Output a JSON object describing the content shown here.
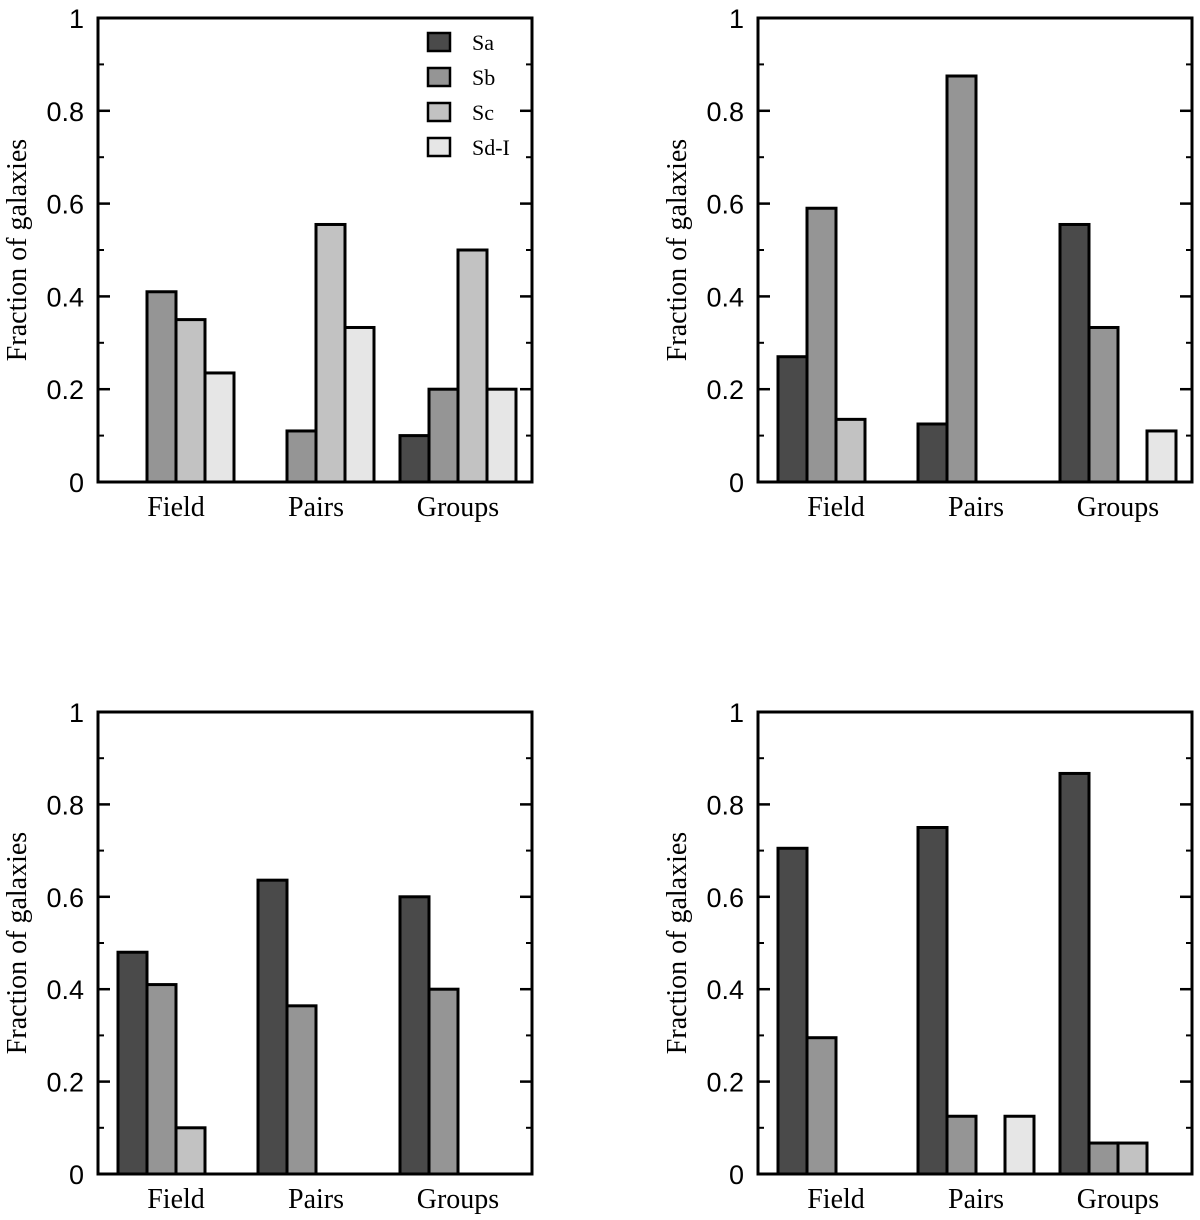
{
  "series_colors": {
    "Sa": "#4a4a4a",
    "Sb": "#959595",
    "Sc": "#c2c2c2",
    "Sd-I": "#e6e6e6"
  },
  "chart_data": [
    {
      "type": "bar",
      "panel": "top-left",
      "title": "",
      "xlabel": "",
      "ylabel": "Fraction of galaxies",
      "ylim": [
        0,
        1
      ],
      "yticks": [
        "0",
        "0.2",
        "0.4",
        "0.6",
        "0.8",
        "1"
      ],
      "categories": [
        "Field",
        "Pairs",
        "Groups"
      ],
      "legend": {
        "placement": "top-right",
        "entries": [
          "Sa",
          "Sb",
          "Sc",
          "Sd-I"
        ]
      },
      "series": [
        {
          "name": "Sa",
          "values": [
            0,
            0,
            0.1
          ]
        },
        {
          "name": "Sb",
          "values": [
            0.41,
            0.11,
            0.2
          ]
        },
        {
          "name": "Sc",
          "values": [
            0.35,
            0.555,
            0.5
          ]
        },
        {
          "name": "Sd-I",
          "values": [
            0.235,
            0.333,
            0.2
          ]
        }
      ]
    },
    {
      "type": "bar",
      "panel": "top-right",
      "title": "",
      "xlabel": "",
      "ylabel": "Fraction of galaxies",
      "ylim": [
        0,
        1
      ],
      "yticks": [
        "0",
        "0.2",
        "0.4",
        "0.6",
        "0.8",
        "1"
      ],
      "categories": [
        "Field",
        "Pairs",
        "Groups"
      ],
      "series": [
        {
          "name": "Sa",
          "values": [
            0.27,
            0.125,
            0.555
          ]
        },
        {
          "name": "Sb",
          "values": [
            0.59,
            0.875,
            0.333
          ]
        },
        {
          "name": "Sc",
          "values": [
            0.135,
            0,
            0
          ]
        },
        {
          "name": "Sd-I",
          "values": [
            0,
            0,
            0.11
          ]
        }
      ]
    },
    {
      "type": "bar",
      "panel": "bottom-left",
      "title": "",
      "xlabel": "",
      "ylabel": "Fraction of galaxies",
      "ylim": [
        0,
        1
      ],
      "yticks": [
        "0",
        "0.2",
        "0.4",
        "0.6",
        "0.8",
        "1"
      ],
      "categories": [
        "Field",
        "Pairs",
        "Groups"
      ],
      "series": [
        {
          "name": "Sa",
          "values": [
            0.48,
            0.636,
            0.6
          ]
        },
        {
          "name": "Sb",
          "values": [
            0.41,
            0.364,
            0.4
          ]
        },
        {
          "name": "Sc",
          "values": [
            0.1,
            0,
            0
          ]
        },
        {
          "name": "Sd-I",
          "values": [
            0,
            0,
            0
          ]
        }
      ]
    },
    {
      "type": "bar",
      "panel": "bottom-right",
      "title": "",
      "xlabel": "",
      "ylabel": "Fraction of galaxies",
      "ylim": [
        0,
        1
      ],
      "yticks": [
        "0",
        "0.2",
        "0.4",
        "0.6",
        "0.8",
        "1"
      ],
      "categories": [
        "Field",
        "Pairs",
        "Groups"
      ],
      "series": [
        {
          "name": "Sa",
          "values": [
            0.705,
            0.75,
            0.867
          ]
        },
        {
          "name": "Sb",
          "values": [
            0.295,
            0.125,
            0.067
          ]
        },
        {
          "name": "Sc",
          "values": [
            0,
            0,
            0.067
          ]
        },
        {
          "name": "Sd-I",
          "values": [
            0,
            0.125,
            0
          ]
        }
      ]
    }
  ]
}
